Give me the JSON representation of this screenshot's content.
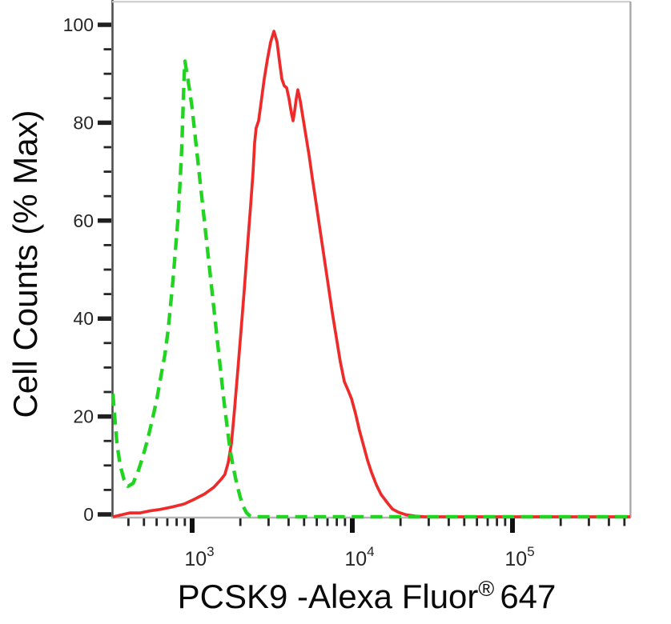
{
  "figure": {
    "y_axis_title": "Cell Counts (% Max)",
    "x_axis_title_main": "PCSK9 -Alexa Fluor",
    "x_axis_title_sup": "®",
    "x_axis_title_end": "647"
  },
  "chart_data": {
    "type": "line",
    "title": "",
    "xlabel": "PCSK9 -Alexa Fluor® 647",
    "ylabel": "Cell Counts (% Max)",
    "grid": false,
    "legend": "none",
    "x_axis": {
      "scale": "log10",
      "range": [
        320,
        543000
      ],
      "major_ticks": [
        {
          "value": 1000,
          "exponent": "3"
        },
        {
          "value": 10000,
          "exponent": "4"
        },
        {
          "value": 100000,
          "exponent": "5"
        }
      ],
      "minor_ticks": [
        400,
        500,
        600,
        700,
        800,
        900,
        2000,
        3000,
        4000,
        5000,
        6000,
        7000,
        8000,
        9000,
        20000,
        30000,
        40000,
        50000,
        60000,
        70000,
        80000,
        90000,
        200000,
        300000,
        400000,
        500000
      ]
    },
    "y_axis": {
      "range": [
        0,
        100
      ],
      "major_ticks": [
        0,
        20,
        40,
        60,
        80,
        100
      ],
      "minor_ticks": [
        5,
        10,
        15,
        25,
        30,
        35,
        45,
        50,
        55,
        65,
        70,
        75,
        85,
        90,
        95
      ]
    },
    "series": [
      {
        "name": "red-solid-sample",
        "color": "#ee2b2b",
        "line_style": "solid",
        "points": [
          [
            320,
            0
          ],
          [
            410,
            0.8
          ],
          [
            475,
            0.8
          ],
          [
            545,
            1.2
          ],
          [
            630,
            1.5
          ],
          [
            750,
            2
          ],
          [
            890,
            2.6
          ],
          [
            1035,
            3.6
          ],
          [
            1190,
            4.6
          ],
          [
            1365,
            6
          ],
          [
            1515,
            7.6
          ],
          [
            1600,
            8.6
          ],
          [
            1680,
            11
          ],
          [
            1760,
            15
          ],
          [
            1840,
            22
          ],
          [
            1930,
            30
          ],
          [
            2020,
            38
          ],
          [
            2115,
            46
          ],
          [
            2215,
            55
          ],
          [
            2315,
            63
          ],
          [
            2400,
            70
          ],
          [
            2455,
            76
          ],
          [
            2510,
            79
          ],
          [
            2600,
            80.5
          ],
          [
            2690,
            84
          ],
          [
            2820,
            89
          ],
          [
            2950,
            93
          ],
          [
            3090,
            96.5
          ],
          [
            3240,
            98.7
          ],
          [
            3390,
            96.5
          ],
          [
            3510,
            92.5
          ],
          [
            3630,
            89
          ],
          [
            3760,
            87.6
          ],
          [
            3890,
            87.2
          ],
          [
            4025,
            85
          ],
          [
            4170,
            82
          ],
          [
            4265,
            80.5
          ],
          [
            4365,
            82.5
          ],
          [
            4465,
            85
          ],
          [
            4570,
            86.8
          ],
          [
            4730,
            84.5
          ],
          [
            4900,
            81.5
          ],
          [
            5130,
            77.5
          ],
          [
            5370,
            73.5
          ],
          [
            5620,
            69
          ],
          [
            5960,
            63.5
          ],
          [
            6310,
            58
          ],
          [
            6680,
            52.5
          ],
          [
            7080,
            47
          ],
          [
            7500,
            41.5
          ],
          [
            7940,
            36.5
          ],
          [
            8410,
            31.5
          ],
          [
            8910,
            27.5
          ],
          [
            9330,
            26
          ],
          [
            9890,
            24
          ],
          [
            10470,
            21
          ],
          [
            11090,
            17.5
          ],
          [
            11750,
            14.5
          ],
          [
            12450,
            11.5
          ],
          [
            13180,
            9
          ],
          [
            14130,
            6.5
          ],
          [
            15140,
            4.5
          ],
          [
            16600,
            2.8
          ],
          [
            17780,
            1.6
          ],
          [
            19500,
            0.9
          ],
          [
            21680,
            0.4
          ],
          [
            24550,
            0.15
          ],
          [
            28180,
            0
          ],
          [
            543000,
            0
          ]
        ]
      },
      {
        "name": "green-dashed-control",
        "color": "#21d421",
        "line_style": "dashed",
        "points": [
          [
            320,
            25
          ],
          [
            327,
            21
          ],
          [
            339,
            15
          ],
          [
            355,
            10.5
          ],
          [
            376,
            7.5
          ],
          [
            398,
            6.2
          ],
          [
            427,
            6.8
          ],
          [
            457,
            9
          ],
          [
            490,
            12
          ],
          [
            525,
            15.5
          ],
          [
            562,
            19.5
          ],
          [
            603,
            24
          ],
          [
            638,
            28.5
          ],
          [
            676,
            33
          ],
          [
            708,
            38
          ],
          [
            733,
            43
          ],
          [
            759,
            48
          ],
          [
            785,
            54
          ],
          [
            813,
            60
          ],
          [
            841,
            68
          ],
          [
            861,
            75
          ],
          [
            871,
            80
          ],
          [
            881,
            85
          ],
          [
            891,
            89.5
          ],
          [
            902,
            92.6
          ],
          [
            933,
            89.5
          ],
          [
            966,
            86.5
          ],
          [
            1000,
            83
          ],
          [
            1035,
            78.5
          ],
          [
            1072,
            74
          ],
          [
            1109,
            69.5
          ],
          [
            1148,
            65
          ],
          [
            1189,
            60.5
          ],
          [
            1230,
            56
          ],
          [
            1274,
            51.5
          ],
          [
            1318,
            47
          ],
          [
            1365,
            42.5
          ],
          [
            1413,
            38
          ],
          [
            1462,
            33.5
          ],
          [
            1514,
            29
          ],
          [
            1567,
            24.5
          ],
          [
            1622,
            20.5
          ],
          [
            1679,
            16.5
          ],
          [
            1738,
            13
          ],
          [
            1820,
            9.5
          ],
          [
            1905,
            6.5
          ],
          [
            1995,
            4
          ],
          [
            2089,
            2
          ],
          [
            2188,
            0.8
          ],
          [
            2291,
            0.2
          ],
          [
            2399,
            0
          ],
          [
            543000,
            0
          ]
        ]
      }
    ]
  }
}
